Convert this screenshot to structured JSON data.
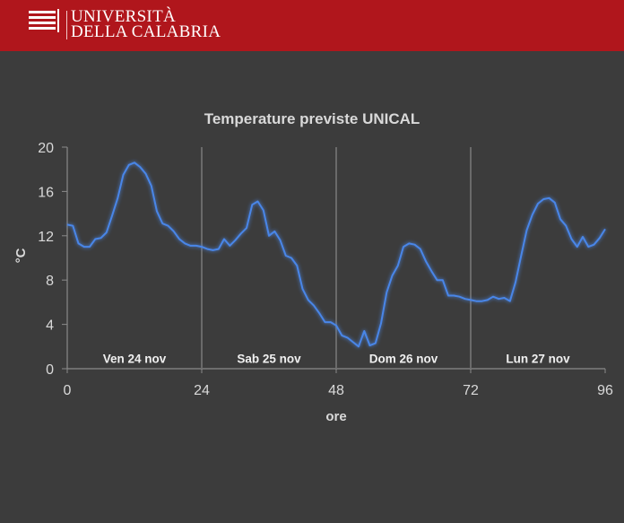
{
  "header": {
    "brand_line1": "UNIVERSITÀ",
    "brand_line2": "DELLA CALABRIA",
    "logo_icon": "unical-logo-icon",
    "background": "#b0161c"
  },
  "chart_data": {
    "type": "line",
    "title": "Temperature previste UNICAL",
    "xlabel": "ore",
    "ylabel": "°C",
    "xlim": [
      0,
      96
    ],
    "ylim": [
      0,
      20
    ],
    "x_ticks": [
      0,
      24,
      48,
      72,
      96
    ],
    "y_ticks": [
      0,
      4,
      8,
      12,
      16,
      20
    ],
    "grid": false,
    "line_color": "#4a86e8",
    "day_separators": [
      24,
      48,
      72
    ],
    "day_labels": [
      {
        "label": "Ven 24 nov",
        "center": 12
      },
      {
        "label": "Sab 25 nov",
        "center": 36
      },
      {
        "label": "Dom 26 nov",
        "center": 60
      },
      {
        "label": "Lun 27 nov",
        "center": 84
      }
    ],
    "series": [
      {
        "x": [
          0,
          1,
          2,
          3,
          4,
          5,
          6,
          7,
          8,
          9,
          10,
          11,
          12,
          13,
          14,
          15,
          16,
          17,
          18,
          19,
          20,
          21,
          22,
          23,
          24,
          25,
          26,
          27,
          28,
          29,
          30,
          31,
          32,
          33,
          34,
          35,
          36,
          37,
          38,
          39,
          40,
          41,
          42,
          43,
          44,
          45,
          46,
          47,
          48,
          49,
          50,
          51,
          52,
          53,
          54,
          55,
          56,
          57,
          58,
          59,
          60,
          61,
          62,
          63,
          64,
          65,
          66,
          67,
          68,
          69,
          70,
          71,
          72,
          73,
          74,
          75,
          76,
          77,
          78,
          79,
          80,
          81,
          82,
          83,
          84,
          85,
          86,
          87,
          88,
          89,
          90,
          91,
          92,
          93,
          94,
          95,
          96
        ],
        "y": [
          13.0,
          12.9,
          11.3,
          11.0,
          11.0,
          11.7,
          11.8,
          12.3,
          13.8,
          15.4,
          17.5,
          18.4,
          18.6,
          18.2,
          17.6,
          16.5,
          14.2,
          13.1,
          12.9,
          12.4,
          11.7,
          11.3,
          11.1,
          11.1,
          11.0,
          10.8,
          10.7,
          10.8,
          11.7,
          11.1,
          11.6,
          12.2,
          12.7,
          14.8,
          15.1,
          14.3,
          12.0,
          12.4,
          11.6,
          10.2,
          10.0,
          9.3,
          7.2,
          6.2,
          5.7,
          5.0,
          4.2,
          4.2,
          3.9,
          3.0,
          2.8,
          2.4,
          2.0,
          3.4,
          2.1,
          2.3,
          4.1,
          6.9,
          8.4,
          9.3,
          11.0,
          11.3,
          11.2,
          10.8,
          9.7,
          8.8,
          8.0,
          8.0,
          6.6,
          6.6,
          6.5,
          6.3,
          6.2,
          6.1,
          6.1,
          6.2,
          6.5,
          6.3,
          6.4,
          6.1,
          7.8,
          10.2,
          12.5,
          13.9,
          14.9,
          15.3,
          15.4,
          15.0,
          13.5,
          12.9,
          11.7,
          11.0,
          11.9,
          11.0,
          11.2,
          11.8,
          12.6
        ]
      }
    ]
  }
}
